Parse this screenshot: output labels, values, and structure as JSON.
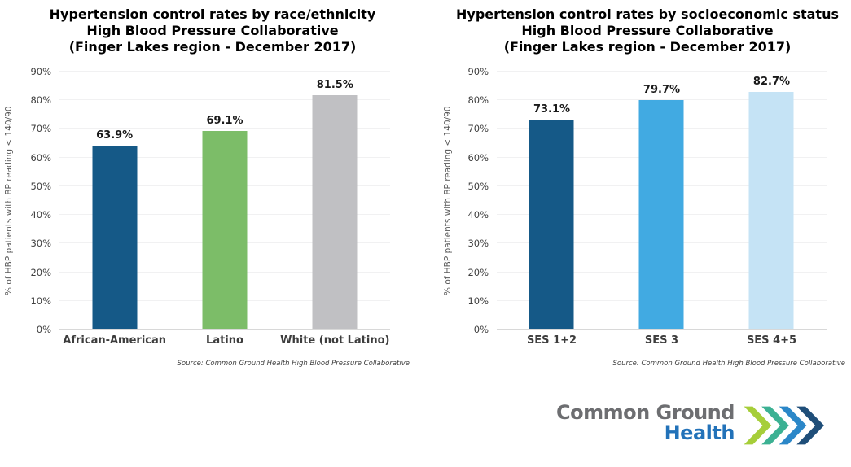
{
  "chart_data": [
    {
      "type": "bar",
      "title": "Hypertension control rates by race/ethnicity High Blood Pressure Collaborative (Finger Lakes region - December 2017)",
      "title_lines": [
        "Hypertension control rates by race/ethnicity",
        "High Blood Pressure Collaborative",
        "(Finger Lakes region - December 2017)"
      ],
      "categories": [
        "African-American",
        "Latino",
        "White (not Latino)"
      ],
      "values": [
        63.9,
        69.1,
        81.5
      ],
      "value_labels": [
        "63.9%",
        "69.1%",
        "81.5%"
      ],
      "bar_colors": [
        "#155987",
        "#7cbd68",
        "#c0c0c3"
      ],
      "xlabel": "",
      "ylabel": "% of HBP patients with BP reading < 140/90",
      "ylim": [
        0,
        90
      ],
      "ytick_step": 10,
      "ytick_suffix": "%",
      "grid": true,
      "legend": "none",
      "source": "Source: Common Ground Health High Blood Pressure Collaborative"
    },
    {
      "type": "bar",
      "title": "Hypertension control rates by socioeconomic status High Blood Pressure Collaborative (Finger Lakes region - December 2017)",
      "title_lines": [
        "Hypertension control rates by socioeconomic status",
        "High Blood Pressure Collaborative",
        "(Finger Lakes region - December 2017)"
      ],
      "categories": [
        "SES 1+2",
        "SES 3",
        "SES 4+5"
      ],
      "values": [
        73.1,
        79.7,
        82.7
      ],
      "value_labels": [
        "73.1%",
        "79.7%",
        "82.7%"
      ],
      "bar_colors": [
        "#155987",
        "#41aae2",
        "#c5e3f5"
      ],
      "xlabel": "",
      "ylabel": "% of HBP patients with BP reading < 140/90",
      "ylim": [
        0,
        90
      ],
      "ytick_step": 10,
      "ytick_suffix": "%",
      "grid": true,
      "legend": "none",
      "source": "Source: Common Ground Health High Blood Pressure Collaborative"
    }
  ],
  "logo": {
    "line1": "Common Ground",
    "line2": "Health",
    "line1_color": "#6d6e71",
    "line2_color": "#2272b9",
    "chevron_colors": [
      "#a6ce39",
      "#3cb193",
      "#2b87c8",
      "#1f4e79"
    ]
  },
  "colors": {
    "background": "#ffffff",
    "gridline": "#f1f1f2",
    "axis_line": "#d8d8d8",
    "tick_text": "#404040",
    "title_text": "#000000"
  }
}
